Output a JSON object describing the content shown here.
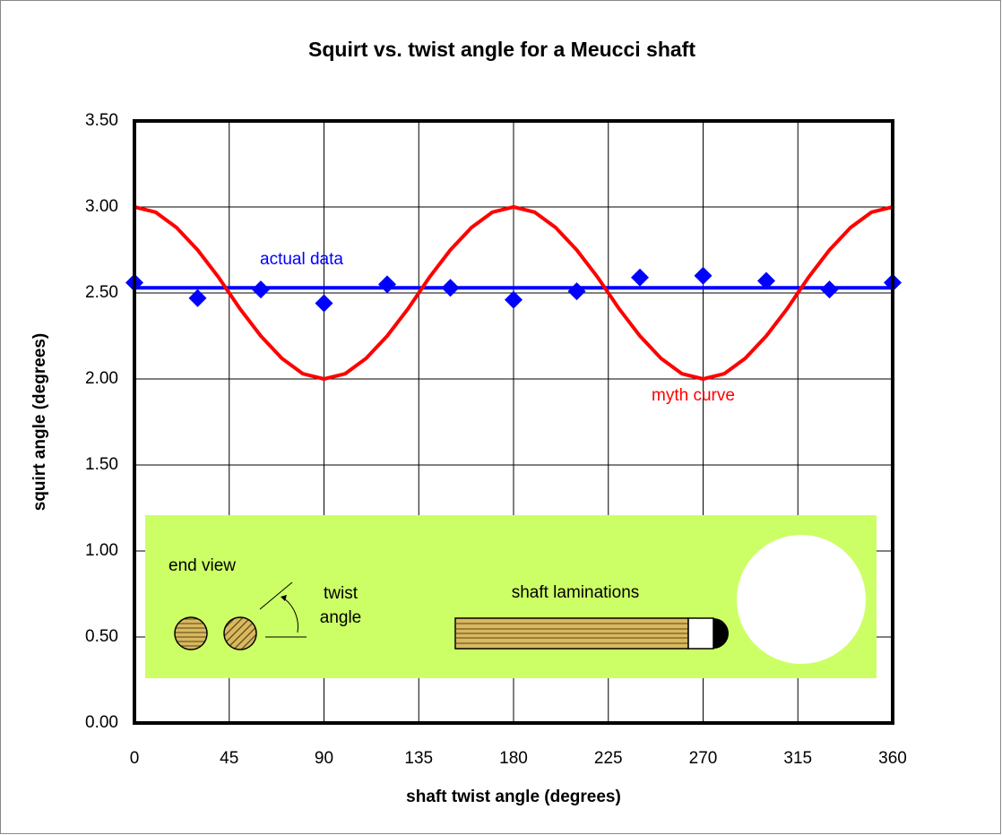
{
  "chart_data": {
    "type": "scatter",
    "title": "Squirt vs. twist angle for a Meucci shaft",
    "x_label": "shaft twist angle (degrees)",
    "y_label": "squirt angle (degrees)",
    "xlim": [
      0,
      360
    ],
    "ylim": [
      0,
      3.5
    ],
    "xticks": [
      0,
      45,
      90,
      135,
      180,
      225,
      270,
      315,
      360
    ],
    "yticks": [
      {
        "value": 0,
        "label": "0.00"
      },
      {
        "value": 0.5,
        "label": "0.50"
      },
      {
        "value": 1,
        "label": "1.00"
      },
      {
        "value": 1.5,
        "label": "1.50"
      },
      {
        "value": 2,
        "label": "2.00"
      },
      {
        "value": 2.5,
        "label": "2.50"
      },
      {
        "value": 3,
        "label": "3.00"
      },
      {
        "value": 3.5,
        "label": "3.50"
      }
    ],
    "grid": true,
    "series": [
      {
        "type": "scatter",
        "color": "#0000ff",
        "x": [
          0,
          30,
          60,
          90,
          120,
          150,
          180,
          210,
          240,
          270,
          300,
          330,
          360
        ],
        "values": [
          2.56,
          2.47,
          2.52,
          2.44,
          2.55,
          2.53,
          2.46,
          2.51,
          2.59,
          2.6,
          2.57,
          2.52,
          2.56
        ]
      },
      {
        "type": "line",
        "name": "actual data",
        "color": "#0000ff",
        "x": [
          0,
          360
        ],
        "values": [
          2.53,
          2.53
        ]
      },
      {
        "type": "line",
        "name": "myth curve",
        "color": "#ff0000",
        "x": [
          0,
          10,
          20,
          30,
          40,
          50,
          60,
          70,
          80,
          90,
          100,
          110,
          120,
          130,
          140,
          150,
          160,
          170,
          180,
          190,
          200,
          210,
          220,
          230,
          240,
          250,
          260,
          270,
          280,
          290,
          300,
          310,
          320,
          330,
          340,
          350,
          360
        ],
        "values": [
          3.0,
          2.97,
          2.88,
          2.75,
          2.59,
          2.41,
          2.25,
          2.12,
          2.03,
          2.0,
          2.03,
          2.12,
          2.25,
          2.41,
          2.59,
          2.75,
          2.88,
          2.97,
          3.0,
          2.97,
          2.88,
          2.75,
          2.59,
          2.41,
          2.25,
          2.12,
          2.03,
          2.0,
          2.03,
          2.12,
          2.25,
          2.41,
          2.59,
          2.75,
          2.88,
          2.97,
          3.0
        ]
      }
    ],
    "inset": {
      "color": "#ccff66",
      "texts": [
        "end view",
        "twist",
        "angle",
        "shaft laminations"
      ]
    }
  }
}
